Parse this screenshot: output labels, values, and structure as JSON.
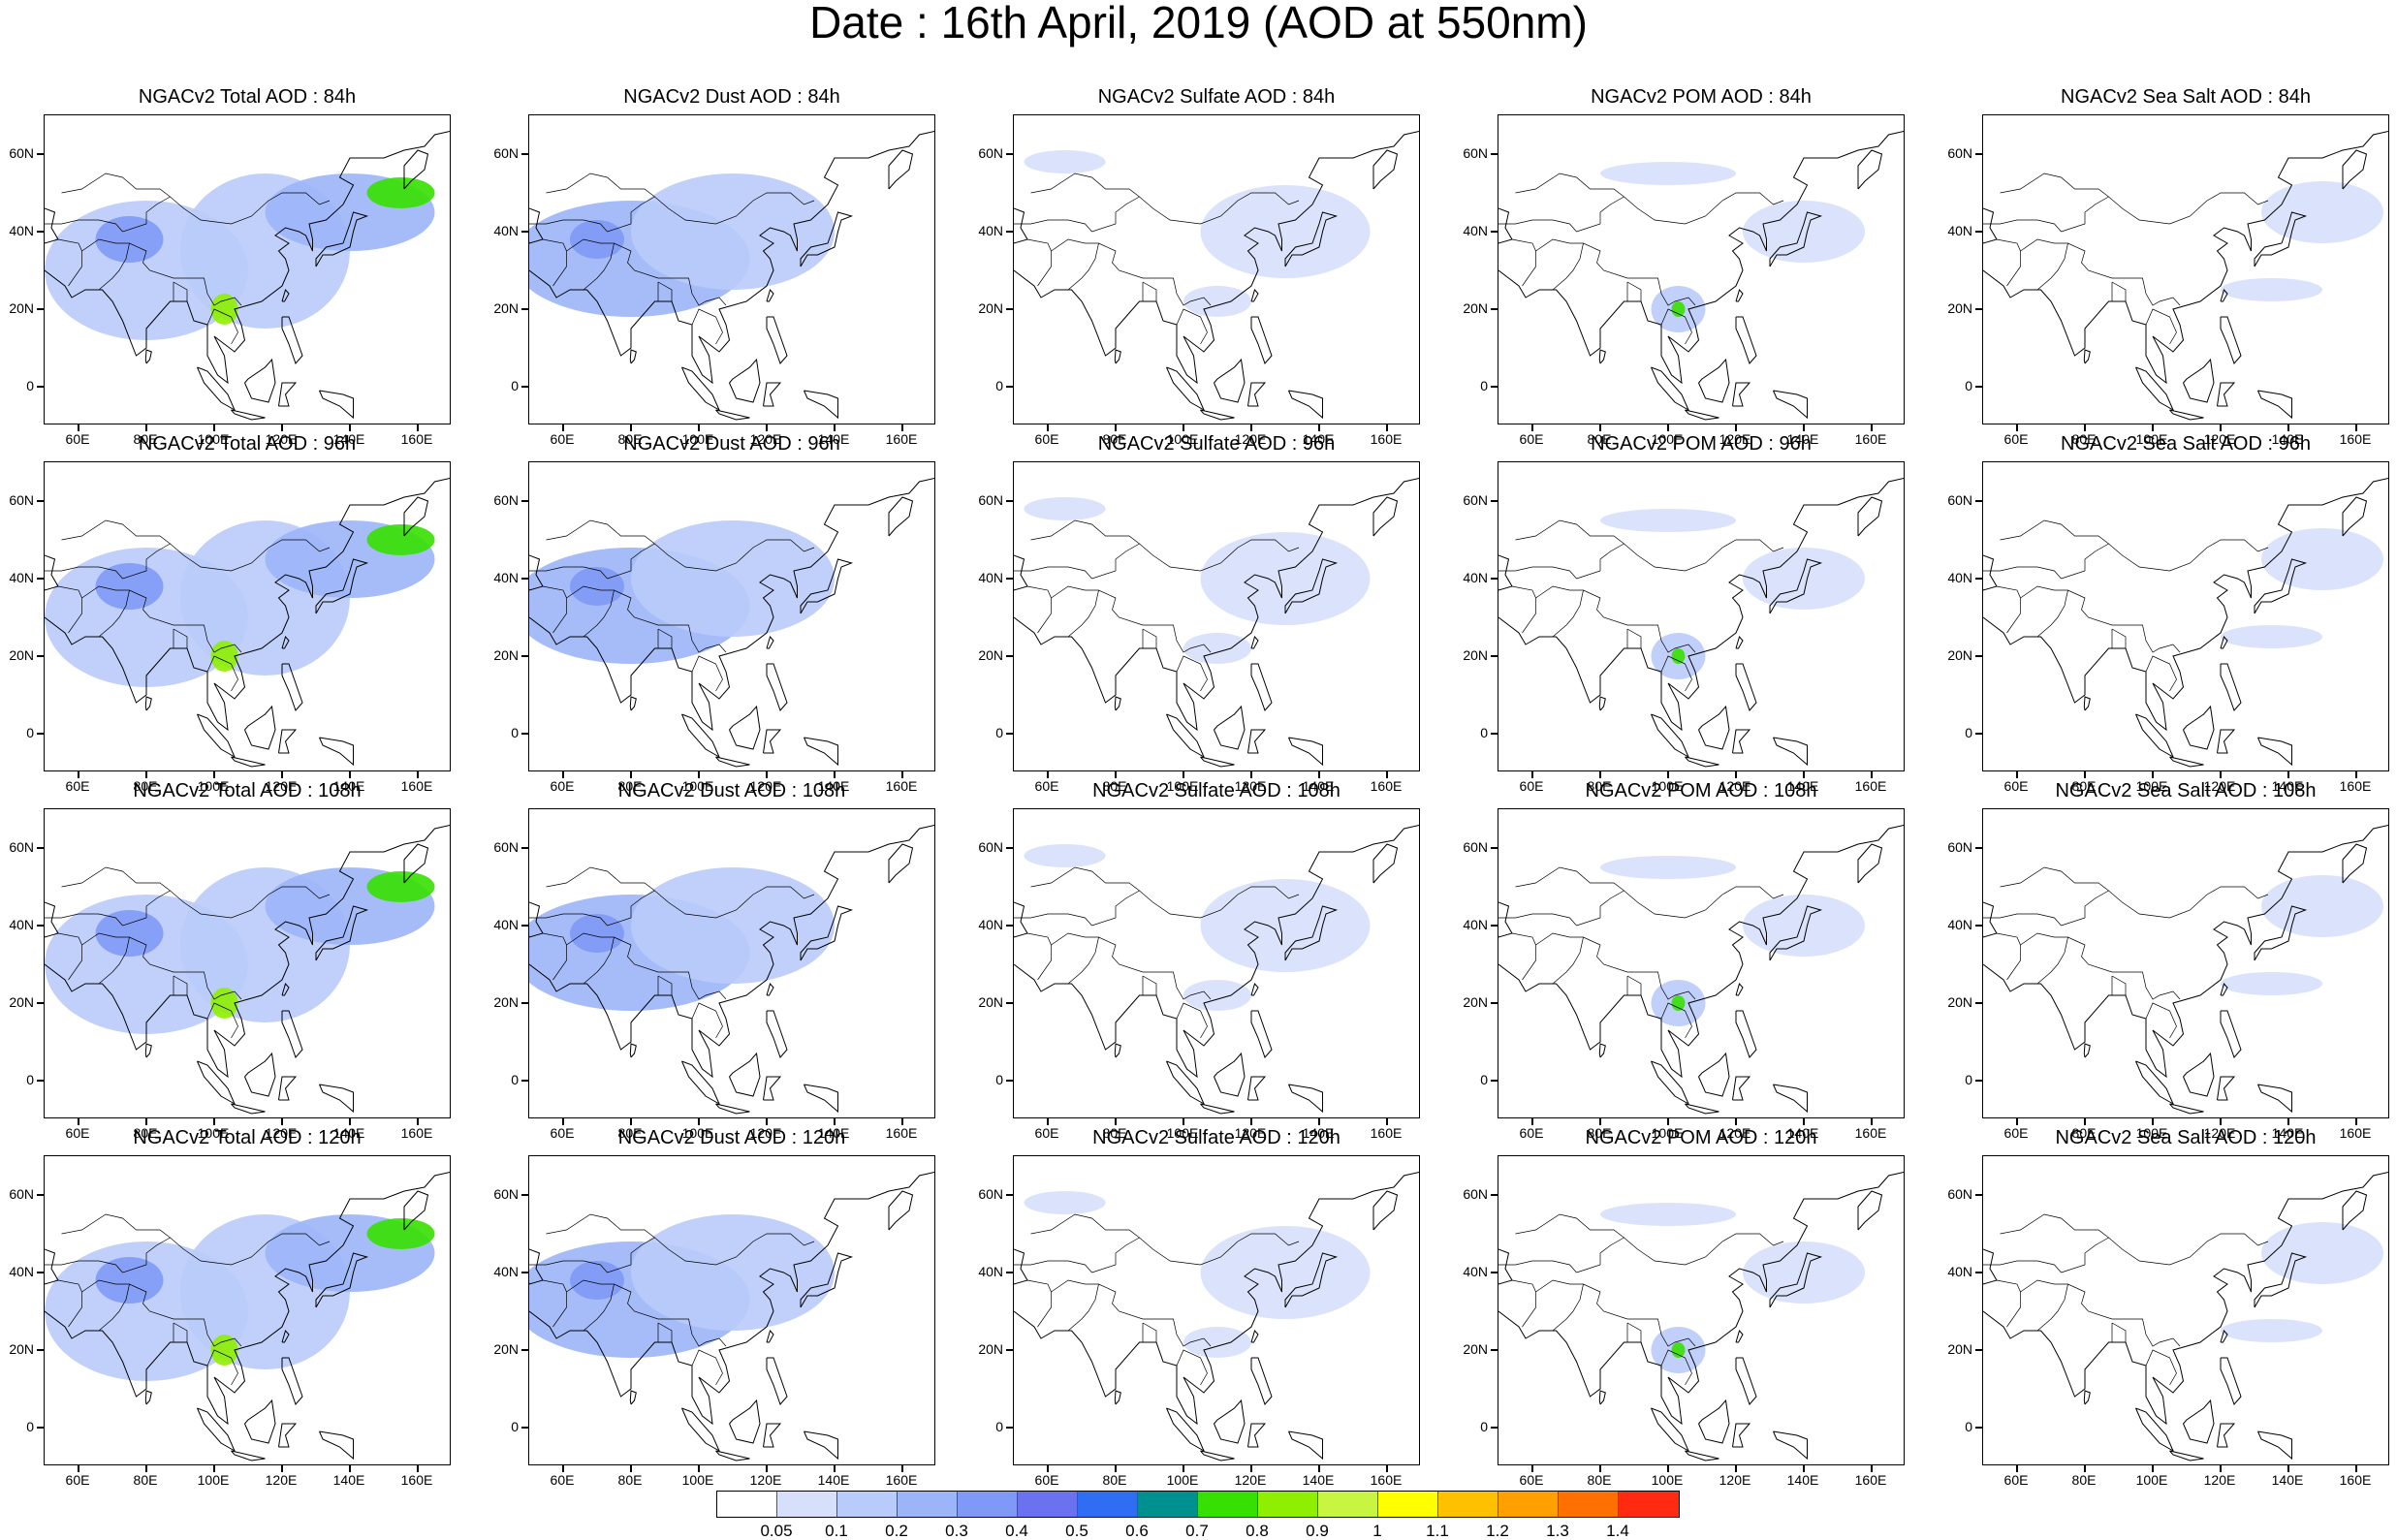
{
  "title": "Date : 16th April, 2019 (AOD at 550nm)",
  "species": [
    "Total",
    "Dust",
    "Sulfate",
    "POM",
    "Sea Salt"
  ],
  "rows": [
    {
      "hour": "84h",
      "titles": [
        "NGACv2 Total AOD : 84h",
        "NGACv2 Dust AOD : 84h",
        "NGACv2 Sulfate AOD : 84h",
        "NGACv2 POM AOD : 84h",
        "NGACv2 Sea Salt AOD : 84h"
      ]
    },
    {
      "hour": "96h",
      "titles": [
        "NGACv2 Total AOD : 96h",
        "NGACv2 Dust AOD : 96h",
        "NGACv2 Sulfate AOD : 96h",
        "NGACv2 POM AOD : 96h",
        "NGACv2 Sea Salt AOD : 96h"
      ]
    },
    {
      "hour": "108h",
      "titles": [
        "NGACv2 Total AOD : 108h",
        "NGACv2 Dust AOD : 108h",
        "NGACv2 Sulfate AOD : 108h",
        "NGACv2 POM AOD : 108h",
        "NGACv2 Sea Salt AOD : 108h"
      ]
    },
    {
      "hour": "120h",
      "titles": [
        "NGACv2 Total AOD : 120h",
        "NGACv2 Dust AOD : 120h",
        "NGACv2 Sulfate AOD : 120h",
        "NGACv2 POM AOD : 120h",
        "NGACv2 Sea Salt  AOD : 120h"
      ]
    }
  ],
  "map_extent": {
    "lon": [
      50,
      170
    ],
    "lat": [
      -10,
      70
    ]
  },
  "lat_ticks": [
    {
      "value": 60,
      "label": "60N"
    },
    {
      "value": 40,
      "label": "40N"
    },
    {
      "value": 20,
      "label": "20N"
    },
    {
      "value": 0,
      "label": "0"
    }
  ],
  "lon_ticks": [
    {
      "value": 60,
      "label": "60E"
    },
    {
      "value": 80,
      "label": "80E"
    },
    {
      "value": 100,
      "label": "100E"
    },
    {
      "value": 120,
      "label": "120E"
    },
    {
      "value": 140,
      "label": "140E"
    },
    {
      "value": 160,
      "label": "160E"
    }
  ],
  "colorbar": {
    "colors": [
      "#ffffff",
      "#d6e0fb",
      "#b9cbfa",
      "#9cb5f8",
      "#8099f6",
      "#6a72f0",
      "#2f6ef2",
      "#009090",
      "#36e000",
      "#8ef000",
      "#c8f541",
      "#ffff00",
      "#ffc000",
      "#ffa000",
      "#ff7000",
      "#ff2a10"
    ],
    "labels": [
      "0.05",
      "0.1",
      "0.2",
      "0.3",
      "0.4",
      "0.5",
      "0.6",
      "0.7",
      "0.8",
      "0.9",
      "1",
      "1.1",
      "1.2",
      "1.3",
      "1.4"
    ]
  },
  "plumes": {
    "Total": [
      {
        "lon": 80,
        "lat": 30,
        "rx": 30,
        "ry": 18,
        "level": 2
      },
      {
        "lon": 115,
        "lat": 35,
        "rx": 25,
        "ry": 20,
        "level": 2
      },
      {
        "lon": 140,
        "lat": 45,
        "rx": 25,
        "ry": 10,
        "level": 3
      },
      {
        "lon": 75,
        "lat": 38,
        "rx": 10,
        "ry": 6,
        "level": 4
      },
      {
        "lon": 103,
        "lat": 20,
        "rx": 4,
        "ry": 4,
        "level": 9
      },
      {
        "lon": 155,
        "lat": 50,
        "rx": 10,
        "ry": 4,
        "level": 8
      }
    ],
    "Dust": [
      {
        "lon": 80,
        "lat": 33,
        "rx": 35,
        "ry": 15,
        "level": 3
      },
      {
        "lon": 110,
        "lat": 40,
        "rx": 30,
        "ry": 15,
        "level": 2
      },
      {
        "lon": 70,
        "lat": 38,
        "rx": 8,
        "ry": 5,
        "level": 4
      }
    ],
    "Sulfate": [
      {
        "lon": 130,
        "lat": 40,
        "rx": 25,
        "ry": 12,
        "level": 1
      },
      {
        "lon": 65,
        "lat": 58,
        "rx": 12,
        "ry": 3,
        "level": 1
      },
      {
        "lon": 110,
        "lat": 22,
        "rx": 10,
        "ry": 4,
        "level": 1
      }
    ],
    "POM": [
      {
        "lon": 103,
        "lat": 20,
        "rx": 8,
        "ry": 6,
        "level": 2
      },
      {
        "lon": 100,
        "lat": 55,
        "rx": 20,
        "ry": 3,
        "level": 1
      },
      {
        "lon": 140,
        "lat": 40,
        "rx": 18,
        "ry": 8,
        "level": 1
      },
      {
        "lon": 103,
        "lat": 20,
        "rx": 2,
        "ry": 2,
        "level": 8
      }
    ],
    "Sea Salt": [
      {
        "lon": 150,
        "lat": 45,
        "rx": 18,
        "ry": 8,
        "level": 1
      },
      {
        "lon": 135,
        "lat": 25,
        "rx": 15,
        "ry": 3,
        "level": 1
      }
    ]
  }
}
